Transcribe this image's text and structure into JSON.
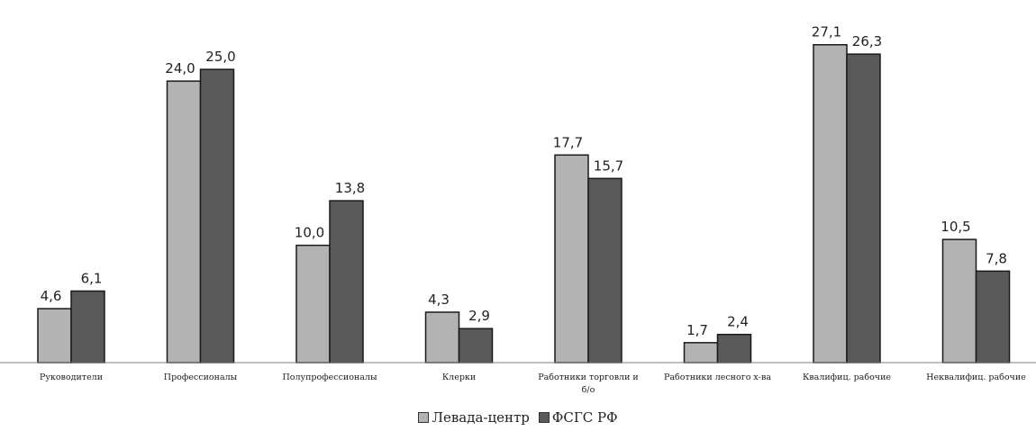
{
  "chart_data": {
    "type": "bar",
    "categories": [
      "Руководители",
      "Профессионалы",
      "Полупрофессионалы",
      "Клерки",
      "Работники торговли и б/о",
      "Работники лесного х-ва",
      "Квалифиц. рабочие",
      "Неквалифиц. рабочие"
    ],
    "series": [
      {
        "name": "Левада-центр",
        "color": "#b3b3b3",
        "values": [
          4.6,
          24.0,
          10.0,
          4.3,
          17.7,
          1.7,
          27.1,
          10.5
        ],
        "labels": [
          "4,6",
          "24,0",
          "10,0",
          "4,3",
          "17,7",
          "1,7",
          "27,1",
          "10,5"
        ]
      },
      {
        "name": "ФСГС РФ",
        "color": "#595959",
        "values": [
          6.1,
          25.0,
          13.8,
          2.9,
          15.7,
          2.4,
          26.3,
          7.8
        ],
        "labels": [
          "6,1",
          "25,0",
          "13,8",
          "2,9",
          "15,7",
          "2,4",
          "26,3",
          "7,8"
        ]
      }
    ],
    "title": "",
    "xlabel": "",
    "ylabel": "",
    "ylim": [
      0,
      28
    ],
    "grid": false,
    "legend_position": "bottom"
  }
}
